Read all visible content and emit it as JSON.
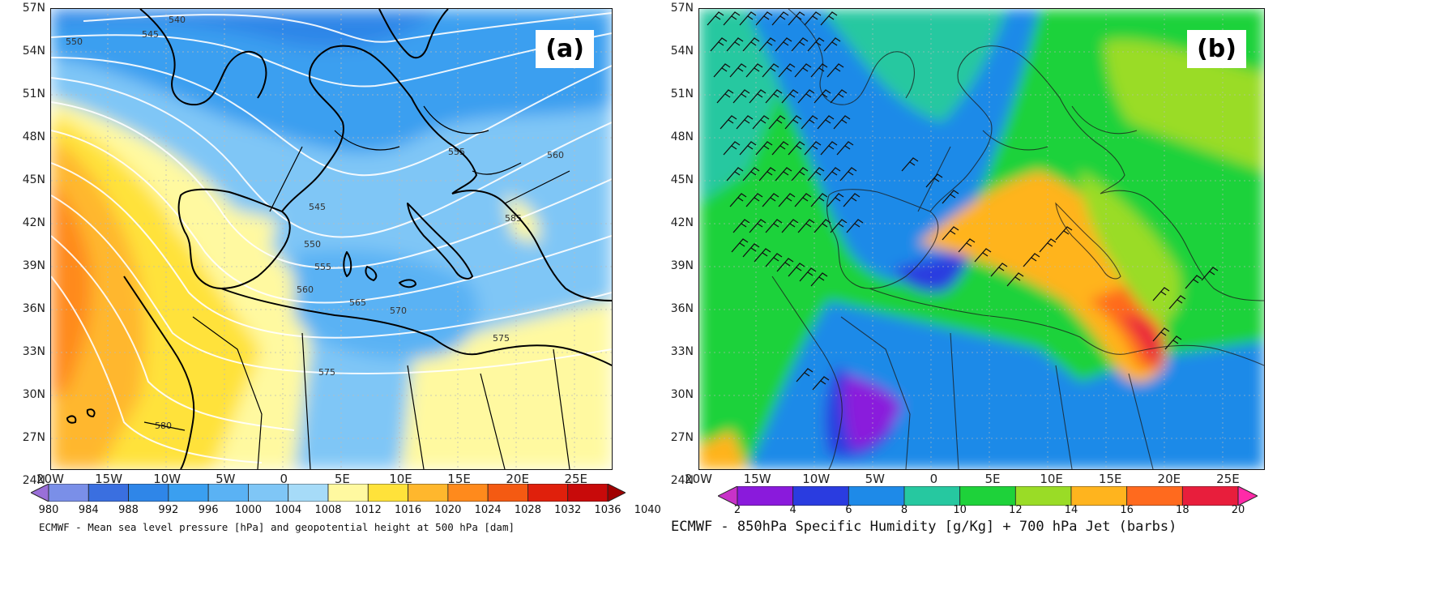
{
  "panel_a": {
    "letter": "(a)",
    "y_ticks": [
      "57N",
      "54N",
      "51N",
      "48N",
      "45N",
      "42N",
      "39N",
      "36N",
      "33N",
      "30N",
      "27N",
      "24N"
    ],
    "x_ticks": [
      "20W",
      "15W",
      "10W",
      "5W",
      "0",
      "5E",
      "10E",
      "15E",
      "20E",
      "25E"
    ],
    "contour_labels": [
      "540",
      "545",
      "550",
      "555",
      "560",
      "565",
      "570",
      "575",
      "580",
      "585"
    ],
    "colorbar": {
      "ticks": [
        "980",
        "984",
        "988",
        "992",
        "996",
        "1000",
        "1004",
        "1008",
        "1012",
        "1016",
        "1020",
        "1024",
        "1028",
        "1032",
        "1036",
        "1040"
      ],
      "colors": [
        "#9a6fd8",
        "#7a8fe8",
        "#3a6fe0",
        "#2f86e8",
        "#3a9ff0",
        "#5ab2f4",
        "#7fc6f6",
        "#a6dbf8",
        "#fff9a0",
        "#ffe23a",
        "#ffb72d",
        "#ff8a1c",
        "#f45a12",
        "#e0200c",
        "#c80a0a",
        "#a00000"
      ]
    },
    "caption": "ECMWF - Mean sea level pressure [hPa] and geopotential height at 500 hPa [dam]"
  },
  "panel_b": {
    "letter": "(b)",
    "y_ticks": [
      "57N",
      "54N",
      "51N",
      "48N",
      "45N",
      "42N",
      "39N",
      "36N",
      "33N",
      "30N",
      "27N",
      "24N"
    ],
    "x_ticks": [
      "20W",
      "15W",
      "10W",
      "5W",
      "0",
      "5E",
      "10E",
      "15E",
      "20E",
      "25E"
    ],
    "colorbar": {
      "ticks": [
        "2",
        "4",
        "6",
        "8",
        "10",
        "12",
        "14",
        "16",
        "18",
        "20"
      ],
      "colors": [
        "#c832c8",
        "#8a1adc",
        "#2a3ce0",
        "#1e8ae8",
        "#26c8a0",
        "#1ed23a",
        "#9adc26",
        "#ffb41e",
        "#ff6a1e",
        "#e81e3c",
        "#ff2aa8"
      ]
    },
    "caption": "ECMWF - 850hPa Specific Humidity [g/Kg] + 700 hPa Jet (barbs)"
  },
  "colors": {
    "frame": "#111111",
    "coast": "#000000",
    "contour": "#ffffff",
    "grid": "#bbbbbb"
  }
}
